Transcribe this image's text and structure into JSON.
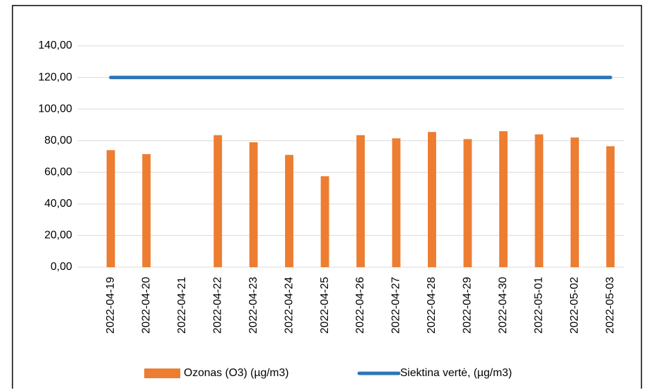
{
  "chart_data": {
    "type": "bar",
    "categories": [
      "2022-04-19",
      "2022-04-20",
      "2022-04-21",
      "2022-04-22",
      "2022-04-23",
      "2022-04-24",
      "2022-04-25",
      "2022-04-26",
      "2022-04-27",
      "2022-04-28",
      "2022-04-29",
      "2022-04-30",
      "2022-05-01",
      "2022-05-02",
      "2022-05-03"
    ],
    "series": [
      {
        "name": "Ozonas (O3) (µg/m3)",
        "type": "bar",
        "color": "#ed7d31",
        "values": [
          74,
          71.5,
          null,
          83.5,
          79,
          71,
          57.5,
          83.5,
          81.5,
          85.5,
          81,
          86,
          84,
          82,
          76.5
        ]
      },
      {
        "name": "Siektina vertė, (µg/m3)",
        "type": "line",
        "color": "#2e75b6",
        "values": [
          120,
          120,
          120,
          120,
          120,
          120,
          120,
          120,
          120,
          120,
          120,
          120,
          120,
          120,
          120
        ]
      }
    ],
    "ylim": [
      0,
      140
    ],
    "yticks": [
      {
        "value": 0,
        "label": "0,00"
      },
      {
        "value": 20,
        "label": "20,00"
      },
      {
        "value": 40,
        "label": "40,00"
      },
      {
        "value": 60,
        "label": "60,00"
      },
      {
        "value": 80,
        "label": "80,00"
      },
      {
        "value": 100,
        "label": "100,00"
      },
      {
        "value": 120,
        "label": "120,00"
      },
      {
        "value": 140,
        "label": "140,00"
      }
    ],
    "grid": true,
    "legend": "bottom"
  }
}
